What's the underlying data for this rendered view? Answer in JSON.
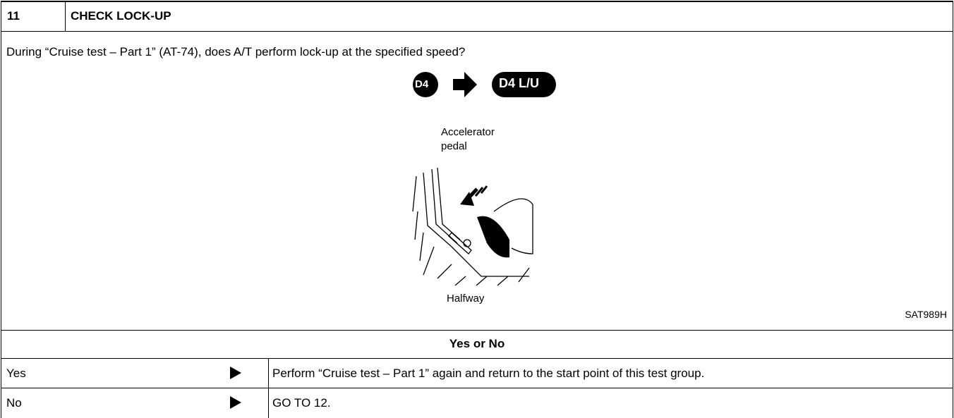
{
  "header": {
    "number": "11",
    "title": "CHECK LOCK-UP"
  },
  "question": "During “Cruise test – Part 1” (AT-74), does A/T perform lock-up at the specified speed?",
  "figure": {
    "from_range": "D4",
    "to_range": "D4 L/U",
    "pedal_label": [
      "Accelerator",
      "pedal"
    ],
    "position_label": "Halfway",
    "figure_id": "SAT989H"
  },
  "result_heading": "Yes or No",
  "results": [
    {
      "answer": "Yes",
      "action": "Perform “Cruise test – Part 1” again and return to the start point of this test group."
    },
    {
      "answer": "No",
      "action": "GO TO 12."
    }
  ]
}
